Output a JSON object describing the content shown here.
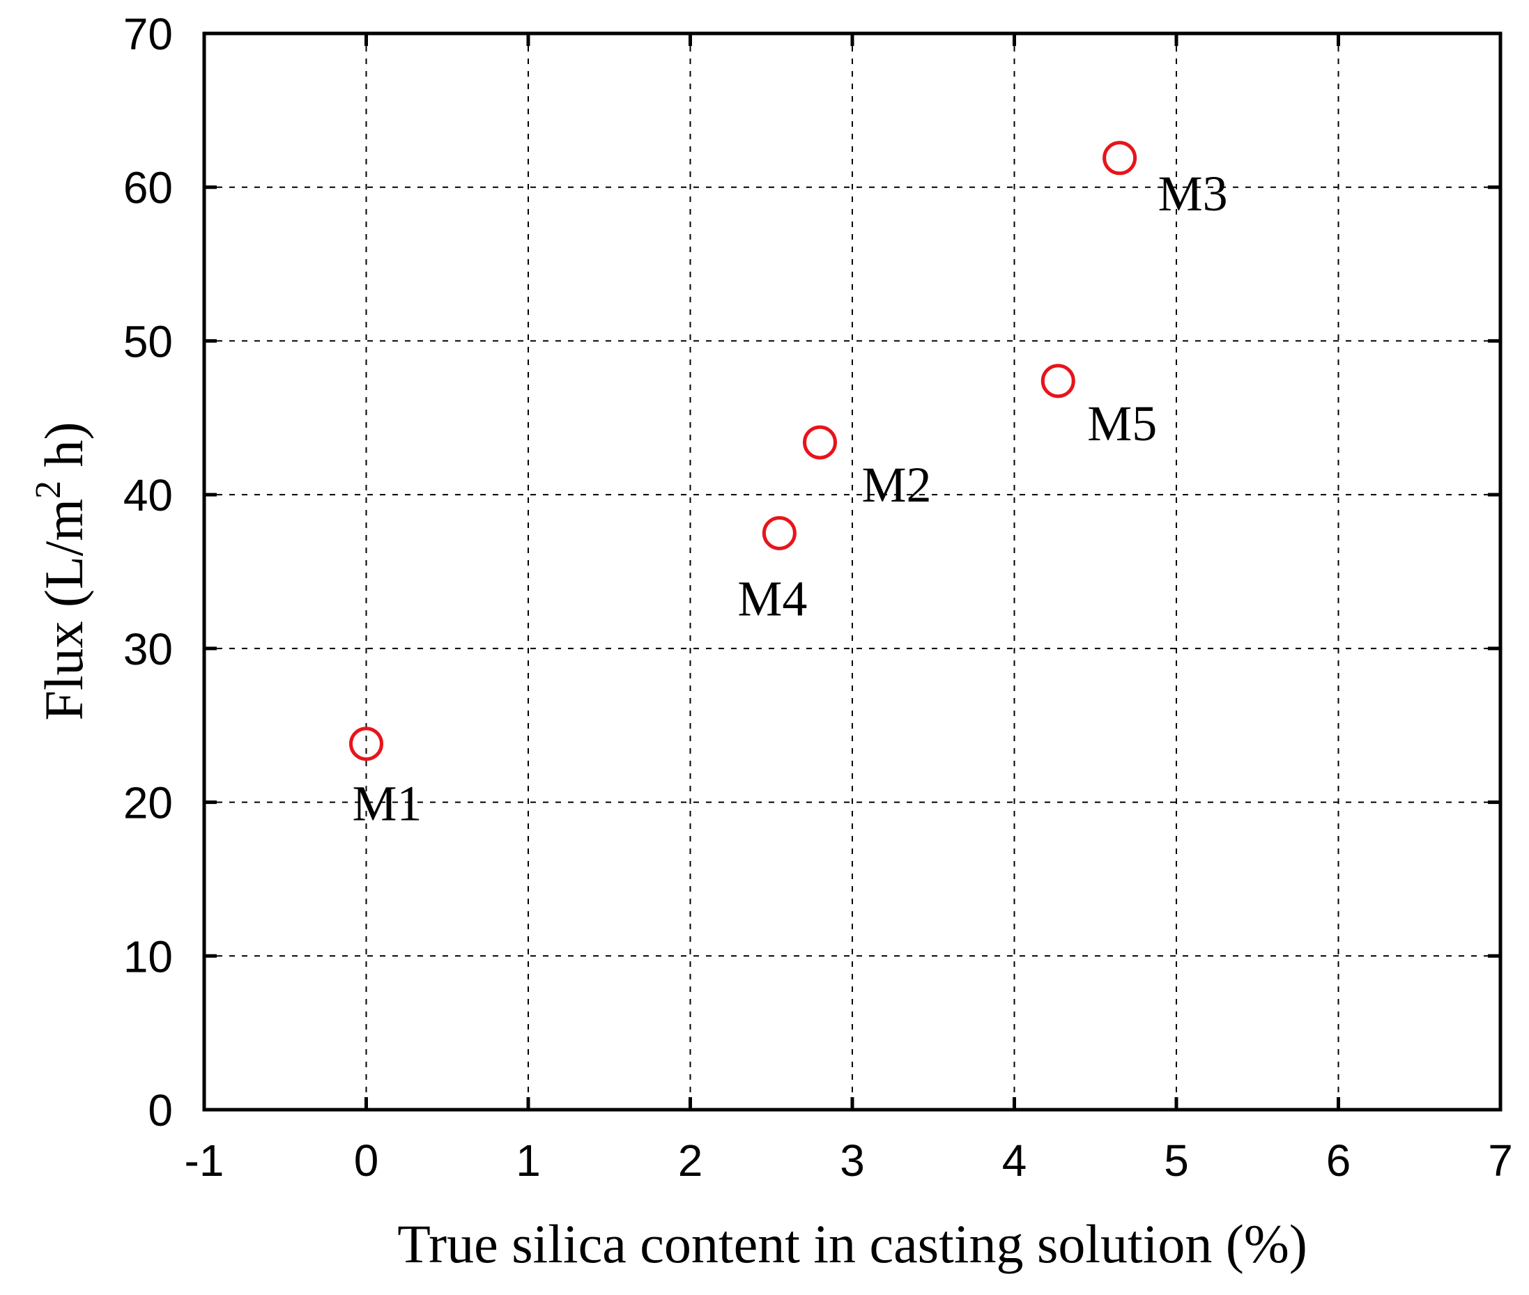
{
  "chart_data": {
    "type": "scatter",
    "title": "",
    "xlabel": "True silica content in casting solution (%)",
    "ylabel": "Flux (L/m",
    "ylabel_sup": "2",
    "ylabel_tail": " h)",
    "xlim": [
      -1,
      7
    ],
    "ylim": [
      0,
      70
    ],
    "xticks": [
      -1,
      0,
      1,
      2,
      3,
      4,
      5,
      6,
      7
    ],
    "yticks": [
      0,
      10,
      20,
      30,
      40,
      50,
      60,
      70
    ],
    "grid": true,
    "marker": "open-circle",
    "marker_color": "#e8141b",
    "points": [
      {
        "label": "M1",
        "x": 0.0,
        "y": 23.8
      },
      {
        "label": "M2",
        "x": 2.8,
        "y": 43.4
      },
      {
        "label": "M3",
        "x": 4.65,
        "y": 61.9
      },
      {
        "label": "M4",
        "x": 2.55,
        "y": 37.5
      },
      {
        "label": "M5",
        "x": 4.27,
        "y": 47.4
      }
    ]
  }
}
